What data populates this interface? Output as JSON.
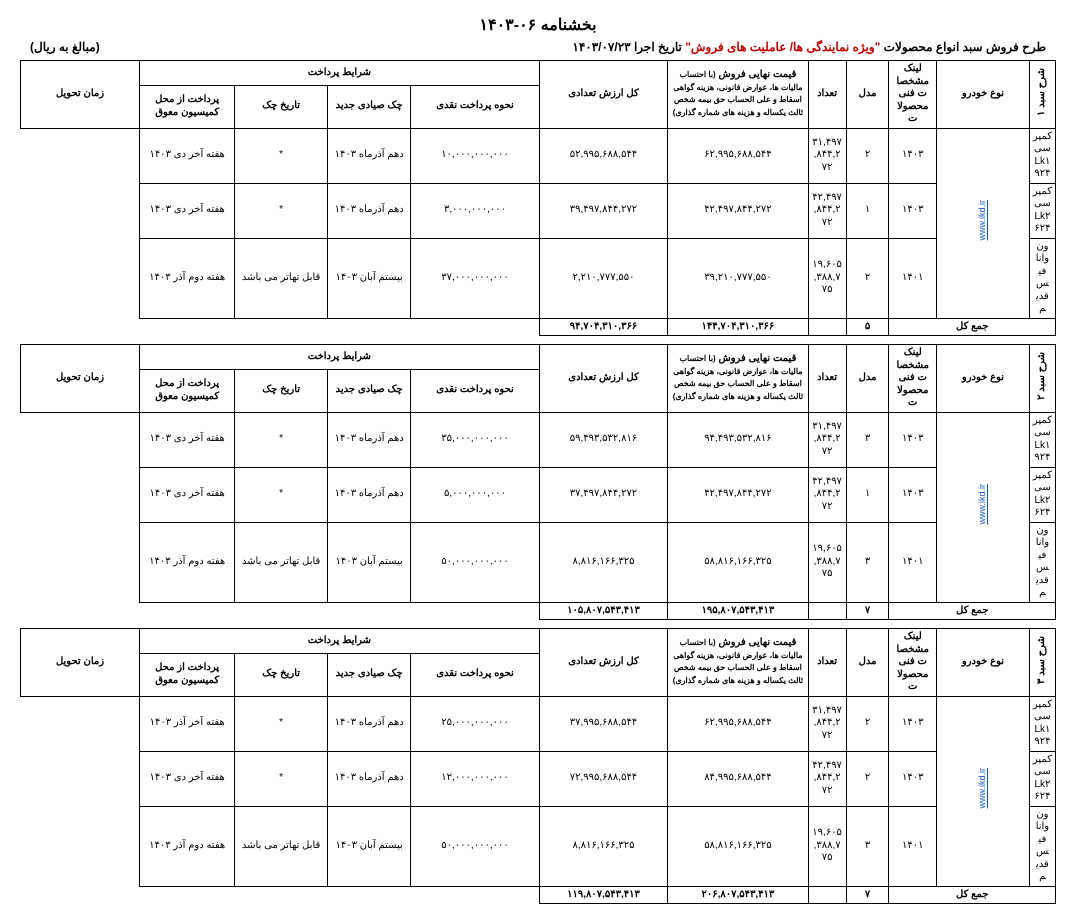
{
  "title": "بخشنامه ۰۶-۱۴۰۳",
  "subtitle_right_prefix": "طرح فروش سبد انواع محصولات ",
  "subtitle_right_red": "\"ویژه نمایندگی ها/ عاملیت های فروش\"",
  "subtitle_right_date_lbl": "  تاریخ اجرا ۱۴۰۳/۰۷/۲۳",
  "subtitle_left": "(مبالغ به ریال)",
  "link_text": "www.ikd.ir",
  "headers": {
    "vehicle_type": "نوع خودرو",
    "spec_link": "لینک مشخصات فنی محصولات",
    "model": "مدل",
    "qty": "تعداد",
    "final_price": "قیمت نهایی فروش",
    "final_price_sub": "(با احتساب مالیات ها، عوارض قانونی، هزینه گواهی اسقاط و علی الحساب حق بیمه شخص ثالث یکساله و هزینه های شماره گذاری)",
    "total_value": "کل ارزش تعدادی",
    "pay_cond": "شرایط پرداخت",
    "cash": "نحوه پرداخت نقدی",
    "cheque_new": "چک صیادی جدید",
    "cheque_date": "تاریخ چک",
    "deferred": "پرداخت از محل کمیسیون معوق",
    "delivery": "زمان تحویل",
    "sum": "جمع کل"
  },
  "baskets": [
    {
      "side": "شرح سبد ۱",
      "rows": [
        {
          "type": "کمپرسی Lk۱۹۲۴",
          "model": "۱۴۰۳",
          "qty": "۲",
          "price": "۳۱,۴۹۷,۸۴۴,۲۷۲",
          "total": "۶۲,۹۹۵,۶۸۸,۵۴۴",
          "cash": "۵۲,۹۹۵,۶۸۸,۵۴۴",
          "chk": "۱۰,۰۰۰,۰۰۰,۰۰۰",
          "chkdate": "دهم آذرماه ۱۴۰۳",
          "defer": "*",
          "deliv": "هفته آخر دی ۱۴۰۳"
        },
        {
          "type": "کمپرسی Lk۲۶۲۴",
          "model": "۱۴۰۳",
          "qty": "۱",
          "price": "۴۲,۴۹۷,۸۴۴,۲۷۲",
          "total": "۴۲,۴۹۷,۸۴۴,۲۷۲",
          "cash": "۳۹,۴۹۷,۸۴۴,۲۷۲",
          "chk": "۳,۰۰۰,۰۰۰,۰۰۰",
          "chkdate": "دهم آذرماه ۱۴۰۳",
          "defer": "*",
          "deliv": "هفته آخر دی ۱۴۰۳"
        },
        {
          "type": "ون وانا فیس قدیم",
          "model": "۱۴۰۱",
          "qty": "۲",
          "price": "۱۹,۶۰۵,۳۸۸,۷۷۵",
          "total": "۳۹,۲۱۰,۷۷۷,۵۵۰",
          "cash": "۲,۲۱۰,۷۷۷,۵۵۰",
          "chk": "۳۷,۰۰۰,۰۰۰,۰۰۰",
          "chkdate": "بیستم آبان ۱۴۰۳",
          "defer": "قابل تهاتر می باشد",
          "deliv": "هفته دوم آذر ۱۴۰۳"
        }
      ],
      "sum_qty": "۵",
      "sum_total": "۱۴۴,۷۰۴,۳۱۰,۳۶۶",
      "sum_cash": "۹۴,۷۰۴,۳۱۰,۳۶۶"
    },
    {
      "side": "شرح سبد ۲",
      "rows": [
        {
          "type": "کمپرسی Lk۱۹۲۴",
          "model": "۱۴۰۳",
          "qty": "۳",
          "price": "۳۱,۴۹۷,۸۴۴,۲۷۲",
          "total": "۹۴,۴۹۳,۵۳۲,۸۱۶",
          "cash": "۵۹,۴۹۳,۵۳۲,۸۱۶",
          "chk": "۳۵,۰۰۰,۰۰۰,۰۰۰",
          "chkdate": "دهم آذرماه ۱۴۰۳",
          "defer": "*",
          "deliv": "هفته آخر دی ۱۴۰۳"
        },
        {
          "type": "کمپرسی Lk۲۶۲۴",
          "model": "۱۴۰۳",
          "qty": "۱",
          "price": "۴۲,۴۹۷,۸۴۴,۲۷۲",
          "total": "۴۲,۴۹۷,۸۴۴,۲۷۲",
          "cash": "۳۷,۴۹۷,۸۴۴,۲۷۲",
          "chk": "۵,۰۰۰,۰۰۰,۰۰۰",
          "chkdate": "دهم آذرماه ۱۴۰۳",
          "defer": "*",
          "deliv": "هفته آخر دی ۱۴۰۳"
        },
        {
          "type": "ون وانا فیس قدیم",
          "model": "۱۴۰۱",
          "qty": "۳",
          "price": "۱۹,۶۰۵,۳۸۸,۷۷۵",
          "total": "۵۸,۸۱۶,۱۶۶,۳۲۵",
          "cash": "۸,۸۱۶,۱۶۶,۳۲۵",
          "chk": "۵۰,۰۰۰,۰۰۰,۰۰۰",
          "chkdate": "بیستم آبان ۱۴۰۳",
          "defer": "قابل تهاتر می باشد",
          "deliv": "هفته دوم آذر ۱۴۰۳"
        }
      ],
      "sum_qty": "۷",
      "sum_total": "۱۹۵,۸۰۷,۵۴۳,۴۱۳",
      "sum_cash": "۱۰۵,۸۰۷,۵۴۳,۴۱۳"
    },
    {
      "side": "شرح سبد ۳",
      "rows": [
        {
          "type": "کمپرسی Lk۱۹۲۴",
          "model": "۱۴۰۳",
          "qty": "۲",
          "price": "۳۱,۴۹۷,۸۴۴,۲۷۲",
          "total": "۶۲,۹۹۵,۶۸۸,۵۴۴",
          "cash": "۳۷,۹۹۵,۶۸۸,۵۴۴",
          "chk": "۲۵,۰۰۰,۰۰۰,۰۰۰",
          "chkdate": "دهم آذرماه ۱۴۰۳",
          "defer": "*",
          "deliv": "هفته آخر آذر ۱۴۰۳"
        },
        {
          "type": "کمپرسی Lk۲۶۲۴",
          "model": "۱۴۰۳",
          "qty": "۲",
          "price": "۴۲,۴۹۷,۸۴۴,۲۷۲",
          "total": "۸۴,۹۹۵,۶۸۸,۵۴۴",
          "cash": "۷۲,۹۹۵,۶۸۸,۵۴۴",
          "chk": "۱۲,۰۰۰,۰۰۰,۰۰۰",
          "chkdate": "دهم آذرماه ۱۴۰۳",
          "defer": "*",
          "deliv": "هفته آخر دی ۱۴۰۳"
        },
        {
          "type": "ون وانا فیس قدیم",
          "model": "۱۴۰۱",
          "qty": "۳",
          "price": "۱۹,۶۰۵,۳۸۸,۷۷۵",
          "total": "۵۸,۸۱۶,۱۶۶,۳۲۵",
          "cash": "۸,۸۱۶,۱۶۶,۳۲۵",
          "chk": "۵۰,۰۰۰,۰۰۰,۰۰۰",
          "chkdate": "بیستم آبان ۱۴۰۳",
          "defer": "قابل تهاتر می باشد",
          "deliv": "هفته دوم آذر ۱۴۰۳"
        }
      ],
      "sum_qty": "۷",
      "sum_total": "۲۰۶,۸۰۷,۵۴۳,۴۱۳",
      "sum_cash": "۱۱۹,۸۰۷,۵۴۳,۴۱۳"
    }
  ]
}
